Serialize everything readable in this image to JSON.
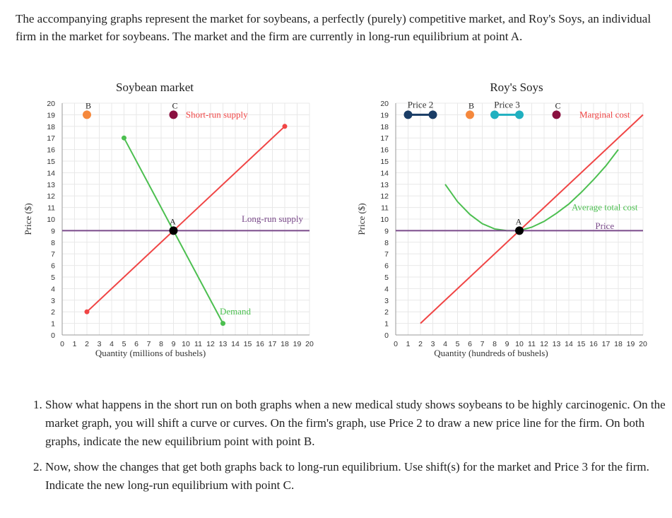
{
  "intro_text": "The accompanying graphs represent the market for soybeans, a perfectly (purely) competitive market, and Roy's Soys, an individual firm in the market for soybeans. The market and the firm are currently in long-run equilibrium at point A.",
  "questions": [
    "Show what happens in the short run on both graphs when a new medical study shows soybeans to be highly carcinogenic. On the market graph, you will shift a curve or curves. On the firm's graph, use Price 2 to draw a new price line for the firm. On both graphs, indicate the new equilibrium point with point B.",
    "Now, show the changes that get both graphs back to long-run equilibrium. Use shift(s) for the market and Price 3 for the firm. Indicate the new long-run equilibrium with point C."
  ],
  "colors": {
    "supply": "#f04545",
    "demand": "#4cbf50",
    "long_run": "#7a4a8a",
    "point_a": "#000000",
    "point_b": "#f5883c",
    "point_c": "#8a1040",
    "price2": "#1a3d66",
    "price3": "#20b0c0",
    "grid": "#e8e8e8"
  },
  "chart_data": [
    {
      "id": "market",
      "type": "line",
      "title": "Soybean market",
      "xlabel": "Quantity (millions of bushels)",
      "ylabel": "Price ($)",
      "xlim": [
        0,
        20
      ],
      "ylim": [
        0,
        20
      ],
      "x_ticks": [
        0,
        1,
        2,
        3,
        4,
        5,
        6,
        7,
        8,
        9,
        10,
        11,
        12,
        13,
        14,
        15,
        16,
        17,
        18,
        19,
        20
      ],
      "y_ticks": [
        0,
        1,
        2,
        3,
        4,
        5,
        6,
        7,
        8,
        9,
        10,
        11,
        12,
        13,
        14,
        15,
        16,
        17,
        18,
        19,
        20
      ],
      "grid": true,
      "series": [
        {
          "name": "Short-run supply",
          "color": "#f04545",
          "points": [
            [
              2,
              2
            ],
            [
              18,
              18
            ]
          ],
          "label_at": [
            12.5,
            19
          ]
        },
        {
          "name": "Demand",
          "color": "#4cbf50",
          "points": [
            [
              5,
              17
            ],
            [
              13,
              1
            ]
          ],
          "label_at": [
            14,
            2
          ]
        },
        {
          "name": "Long-run supply",
          "color": "#7a4a8a",
          "points": [
            [
              0,
              9
            ],
            [
              20,
              9
            ]
          ],
          "label_at": [
            17,
            10
          ]
        }
      ],
      "markers": [
        {
          "label": "A",
          "x": 9,
          "y": 9,
          "color": "#000000"
        },
        {
          "label": "B",
          "x": 2,
          "y": 19,
          "color": "#f5883c"
        },
        {
          "label": "C",
          "x": 9,
          "y": 19,
          "color": "#8a1040"
        }
      ]
    },
    {
      "id": "firm",
      "type": "line",
      "title": "Roy's Soys",
      "xlabel": "Quantity (hundreds of bushels)",
      "ylabel": "Price ($)",
      "xlim": [
        0,
        20
      ],
      "ylim": [
        0,
        20
      ],
      "x_ticks": [
        0,
        1,
        2,
        3,
        4,
        5,
        6,
        7,
        8,
        9,
        10,
        11,
        12,
        13,
        14,
        15,
        16,
        17,
        18,
        19,
        20
      ],
      "y_ticks": [
        0,
        1,
        2,
        3,
        4,
        5,
        6,
        7,
        8,
        9,
        10,
        11,
        12,
        13,
        14,
        15,
        16,
        17,
        18,
        19,
        20
      ],
      "grid": true,
      "series": [
        {
          "name": "Marginal cost",
          "color": "#f04545",
          "points": [
            [
              2,
              1
            ],
            [
              20,
              19
            ]
          ],
          "label_at": [
            16.9,
            19
          ]
        },
        {
          "name": "Average total cost",
          "color": "#4cbf50",
          "points": [
            [
              4,
              13
            ],
            [
              5,
              11.5
            ],
            [
              6,
              10.4
            ],
            [
              7,
              9.6
            ],
            [
              8,
              9.15
            ],
            [
              9,
              9
            ],
            [
              10,
              9
            ],
            [
              11,
              9.3
            ],
            [
              12,
              9.8
            ],
            [
              13,
              10.5
            ],
            [
              14,
              11.3
            ],
            [
              15,
              12.3
            ],
            [
              16,
              13.4
            ],
            [
              17,
              14.6
            ],
            [
              18,
              16
            ]
          ],
          "label_at": [
            16.9,
            11
          ]
        },
        {
          "name": "Price",
          "color": "#7a4a8a",
          "points": [
            [
              0,
              9
            ],
            [
              20,
              9
            ]
          ],
          "label_at": [
            16.9,
            9.4
          ]
        }
      ],
      "markers": [
        {
          "label": "A",
          "x": 10,
          "y": 9,
          "color": "#000000"
        },
        {
          "label": "B",
          "x": 6,
          "y": 19,
          "color": "#f5883c"
        },
        {
          "label": "C",
          "x": 13,
          "y": 19,
          "color": "#8a1040"
        }
      ],
      "price_lines": [
        {
          "label": "Price 2",
          "x": [
            1,
            3
          ],
          "y": 19,
          "color": "#1a3d66"
        },
        {
          "label": "Price 3",
          "x": [
            8,
            10
          ],
          "y": 19,
          "color": "#20b0c0"
        }
      ]
    }
  ]
}
